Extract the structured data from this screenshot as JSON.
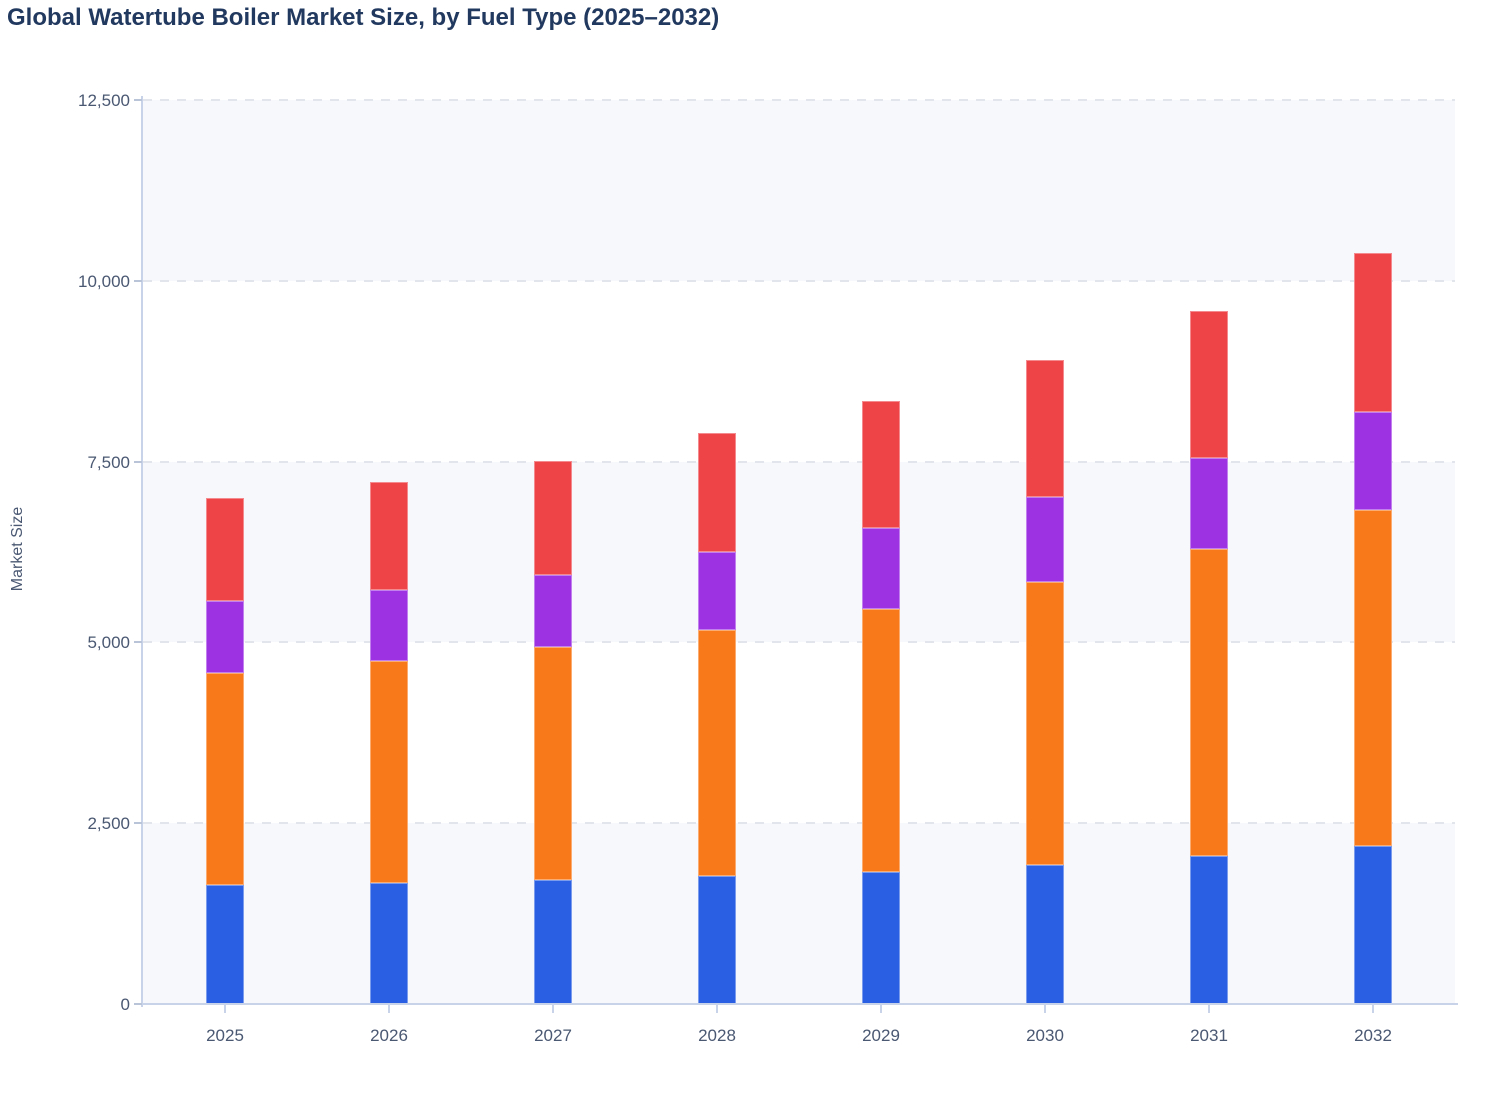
{
  "title": "Global Watertube Boiler Market Size, by Fuel Type (2025–2032)",
  "chart_data": {
    "type": "bar",
    "stacked": true,
    "title": "Global Watertube Boiler Market Size, by Fuel Type (2025–2032)",
    "xlabel": "",
    "ylabel": "Market Size",
    "categories": [
      "2025",
      "2026",
      "2027",
      "2028",
      "2029",
      "2030",
      "2031",
      "2032"
    ],
    "series": [
      {
        "name": "blue-bottom-segment",
        "color": "#2a5fe3",
        "values": [
          1650,
          1680,
          1715,
          1770,
          1830,
          1920,
          2040,
          2180
        ]
      },
      {
        "name": "orange-segment",
        "color": "#f7791a",
        "values": [
          2930,
          3060,
          3220,
          3405,
          3635,
          3920,
          4250,
          4650
        ]
      },
      {
        "name": "purple-segment",
        "color": "#9c32e2",
        "values": [
          990,
          990,
          1000,
          1070,
          1115,
          1170,
          1255,
          1355
        ]
      },
      {
        "name": "red-top-segment",
        "color": "#ee4347",
        "values": [
          1430,
          1495,
          1575,
          1645,
          1760,
          1890,
          2035,
          2205
        ]
      }
    ],
    "stack_totals": [
      7000,
      7225,
      7510,
      7890,
      8340,
      8900,
      9580,
      10390
    ],
    "ylim": [
      0,
      12500
    ],
    "y_ticks_values": [
      0,
      2500,
      5000,
      7500,
      10000,
      12500
    ],
    "y_ticks_labels": [
      "0",
      "2,500",
      "5,000",
      "7,500",
      "10,000",
      "12,500"
    ],
    "grid": "horizontal dashed gridlines with alternating row bands",
    "legend": "none",
    "band_color": "#f6f8fb",
    "band_alt_color": "#ffffff",
    "axis_color": "#c8d3ea",
    "gridline_color": "#e2e5ec",
    "tick_label_color": "#4a5872",
    "title_color": "#22395f"
  }
}
